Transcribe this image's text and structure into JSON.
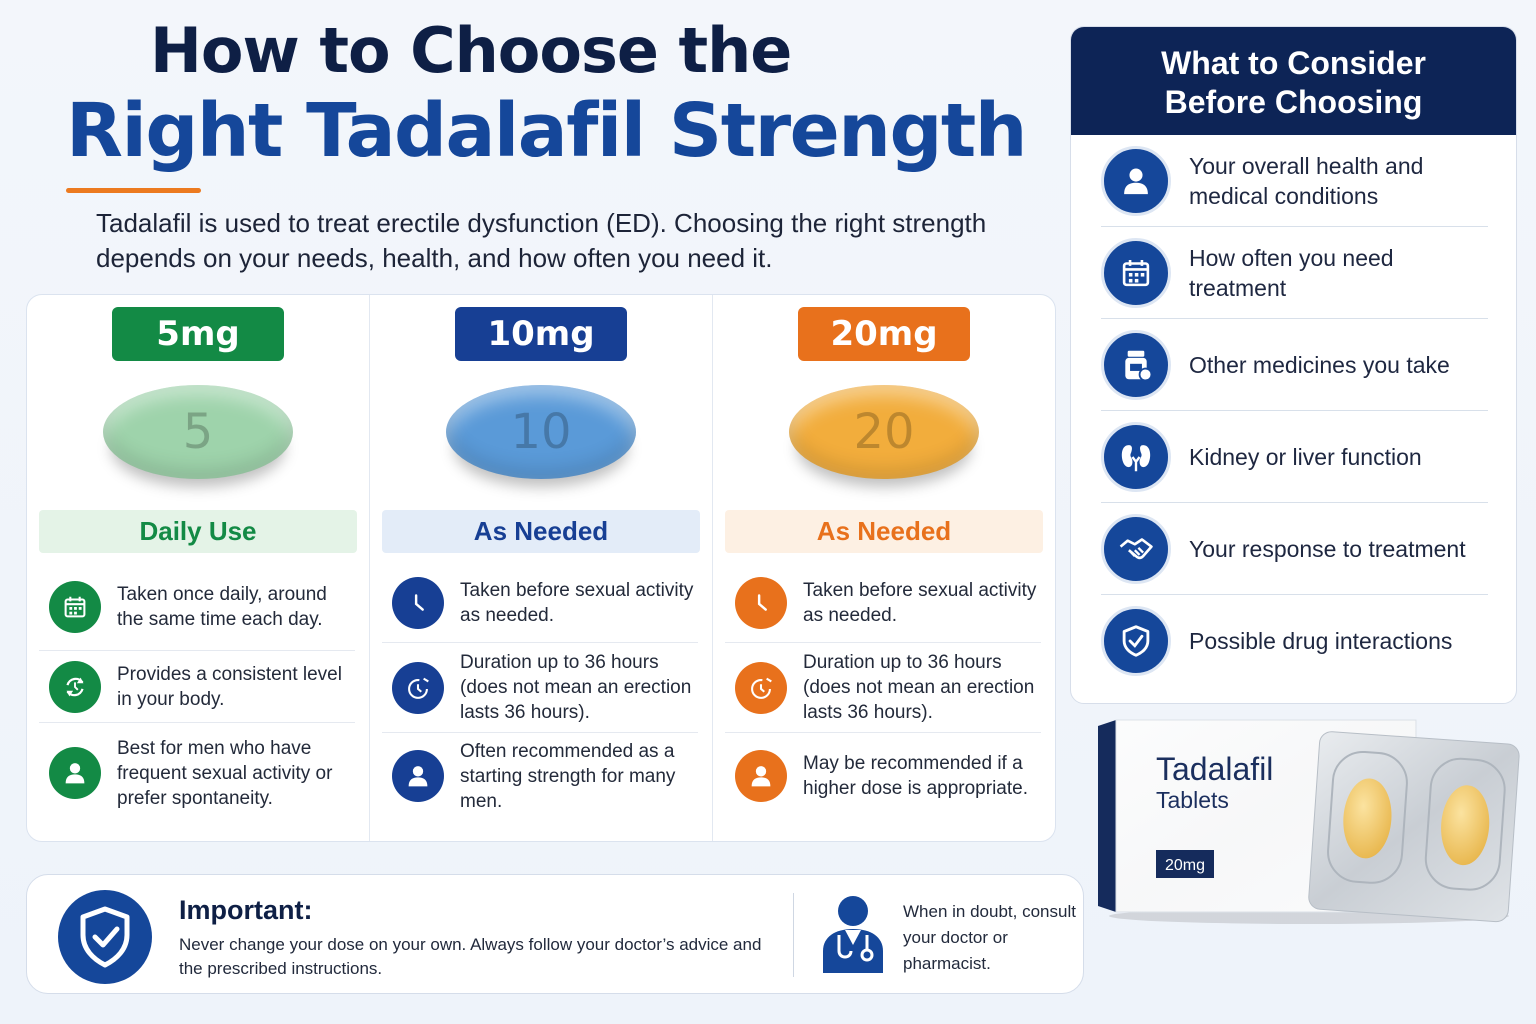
{
  "header": {
    "title_line1": "How to Choose the",
    "title_line2": "Right Tadalafil Strength",
    "intro": "Tadalafil is used to treat erectile dysfunction (ED). Choosing the right strength depends on your needs, health, and how often you need it."
  },
  "strengths": [
    {
      "dose": "5mg",
      "pill_number": "5",
      "usage": "Daily Use",
      "color": "#138a45",
      "light": "#e4f3e7",
      "pill_color": "#9ed3ab",
      "points": [
        {
          "icon": "calendar-icon",
          "text": "Taken once daily, around the same time each day."
        },
        {
          "icon": "cycle-icon",
          "text": "Provides a consistent level in your body."
        },
        {
          "icon": "person-icon",
          "text": "Best for men who have frequent sexual activity or prefer spontaneity."
        }
      ]
    },
    {
      "dose": "10mg",
      "pill_number": "10",
      "usage": "As Needed",
      "color": "#173f94",
      "light": "#e3ecf8",
      "pill_color": "#5a9ad8",
      "points": [
        {
          "icon": "clock-icon",
          "text": "Taken before sexual activity as needed."
        },
        {
          "icon": "timer-icon",
          "text": "Duration up to 36 hours (does not mean an erection lasts 36 hours)."
        },
        {
          "icon": "person-icon",
          "text": "Often recommended as a starting strength for many men."
        }
      ]
    },
    {
      "dose": "20mg",
      "pill_number": "20",
      "usage": "As Needed",
      "color": "#e8711c",
      "light": "#fdf0e3",
      "pill_color": "#f2ad3c",
      "points": [
        {
          "icon": "clock-icon",
          "text": "Taken before sexual activity as needed."
        },
        {
          "icon": "timer-icon",
          "text": "Duration up to 36 hours (does not mean an erection lasts 36 hours)."
        },
        {
          "icon": "person-icon",
          "text": "May be recommended if a higher dose is appropriate."
        }
      ]
    }
  ],
  "consider": {
    "title_line1": "What to Consider",
    "title_line2": "Before Choosing",
    "items": [
      {
        "icon": "person-icon",
        "text": "Your overall health and medical conditions"
      },
      {
        "icon": "calendar-icon",
        "text": "How often you need treatment"
      },
      {
        "icon": "pill-bottle-icon",
        "text": "Other medicines you take"
      },
      {
        "icon": "kidney-icon",
        "text": "Kidney or liver function"
      },
      {
        "icon": "handshake-icon",
        "text": "Your response to treatment"
      },
      {
        "icon": "shield-check-icon",
        "text": "Possible drug interactions"
      }
    ]
  },
  "important": {
    "title": "Important:",
    "body": "Never change your dose on your own. Always follow your doctor’s advice and the prescribed instructions.",
    "doctor_note": "When in doubt, consult your doctor or pharmacist."
  },
  "product": {
    "name": "Tadalafil",
    "subtitle": "Tablets",
    "dose": "20mg"
  },
  "colors": {
    "navy": "#0d2456",
    "blue": "#15479a",
    "orange": "#ec7a1f"
  }
}
